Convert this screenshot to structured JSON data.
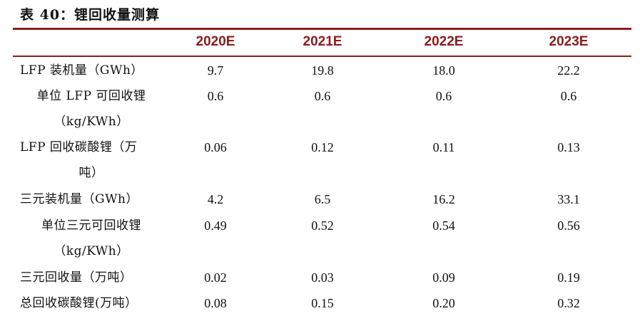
{
  "table": {
    "title": "表 40：锂回收量测算",
    "columns": [
      "2020E",
      "2021E",
      "2022E",
      "2023E"
    ],
    "rows": [
      {
        "label": "LFP 装机量（GWh）",
        "values": [
          "9.7",
          "19.8",
          "18.0",
          "22.2"
        ]
      },
      {
        "label": "单位 LFP 可回收锂",
        "values": [
          "0.6",
          "0.6",
          "0.6",
          "0.6"
        ]
      },
      {
        "label": "（kg/KWh）",
        "values": [
          "",
          "",
          "",
          ""
        ]
      },
      {
        "label": "LFP 回收碳酸锂（万",
        "values": [
          "0.06",
          "0.12",
          "0.11",
          "0.13"
        ]
      },
      {
        "label": "吨）",
        "values": [
          "",
          "",
          "",
          ""
        ]
      },
      {
        "label": "三元装机量（GWh）",
        "values": [
          "4.2",
          "6.5",
          "16.2",
          "33.1"
        ]
      },
      {
        "label": "单位三元可回收锂",
        "values": [
          "0.49",
          "0.52",
          "0.54",
          "0.56"
        ]
      },
      {
        "label": "（kg/KWh）",
        "values": [
          "",
          "",
          "",
          ""
        ]
      },
      {
        "label": "三元回收量（万吨）",
        "values": [
          "0.02",
          "0.03",
          "0.09",
          "0.19"
        ]
      },
      {
        "label": "总回收碳酸锂(万吨）",
        "values": [
          "0.08",
          "0.15",
          "0.20",
          "0.32"
        ]
      }
    ]
  }
}
